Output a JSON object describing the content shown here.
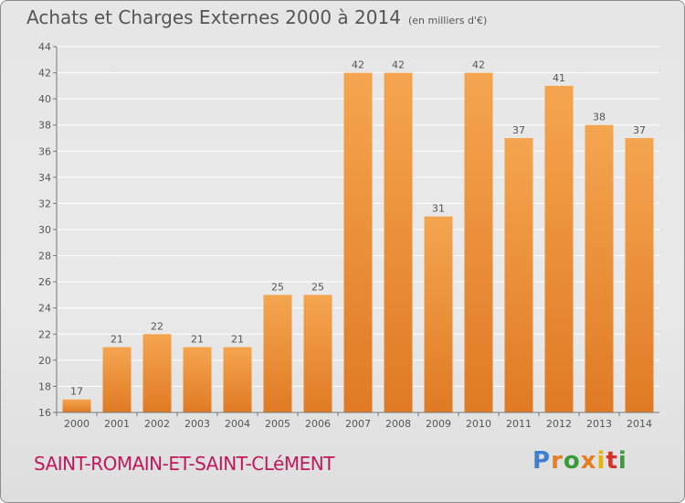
{
  "title": "Achats et Charges Externes 2000 à 2014",
  "unit_label": "(en milliers d'€)",
  "commune": "SAINT-ROMAIN-ET-SAINT-CLéMENT",
  "logo_text": "Proxiti",
  "colors": {
    "bar_light": "#f5a54f",
    "bar_dark": "#e07a24",
    "grid": "#ffffff",
    "text": "#555555",
    "commune": "#c2185b"
  },
  "chart_data": {
    "type": "bar",
    "categories": [
      "2000",
      "2001",
      "2002",
      "2003",
      "2004",
      "2005",
      "2006",
      "2007",
      "2008",
      "2009",
      "2010",
      "2011",
      "2012",
      "2013",
      "2014"
    ],
    "values": [
      17,
      21,
      22,
      21,
      21,
      25,
      25,
      42,
      42,
      31,
      42,
      37,
      41,
      38,
      37
    ],
    "ylim": [
      16,
      44
    ],
    "yticks": [
      16,
      18,
      20,
      22,
      24,
      26,
      28,
      30,
      32,
      34,
      36,
      38,
      40,
      42,
      44
    ],
    "grid": true
  }
}
